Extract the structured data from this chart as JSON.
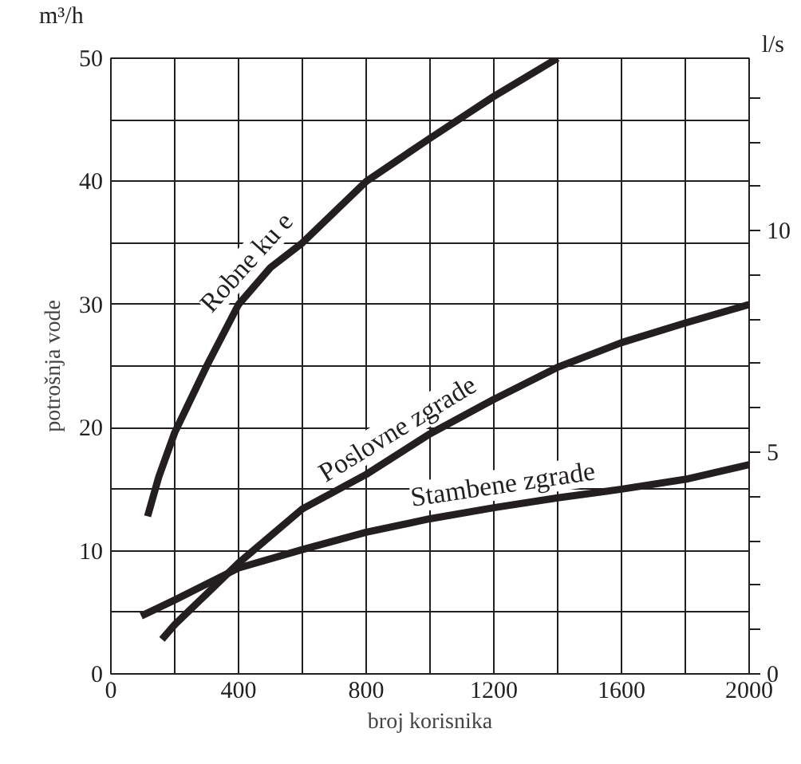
{
  "chart_data": {
    "type": "line",
    "xlabel": "broj korisnika",
    "ylabel": "potrošnja vode",
    "y2label": "l/s",
    "annotations": [
      "m³/h"
    ],
    "xlim": [
      0,
      2000
    ],
    "ylim": [
      0,
      50
    ],
    "y2lim": [
      0,
      13.89
    ],
    "xticks": [
      0,
      {
        "value": 200,
        "label": null
      },
      400,
      {
        "value": 600,
        "label": null
      },
      800,
      {
        "value": 1000,
        "label": null
      },
      1200,
      {
        "value": 1400,
        "label": null
      },
      1600,
      {
        "value": 1800,
        "label": null
      },
      2000
    ],
    "yticks": [
      0,
      {
        "value": 5,
        "label": null
      },
      10,
      {
        "value": 15,
        "label": null
      },
      20,
      {
        "value": 25,
        "label": null
      },
      30,
      {
        "value": 35,
        "label": null
      },
      40,
      {
        "value": 45,
        "label": null
      },
      50
    ],
    "y2ticks": [
      0,
      {
        "value": 1,
        "label": null
      },
      {
        "value": 2,
        "label": null
      },
      {
        "value": 3,
        "label": null
      },
      {
        "value": 4,
        "label": null
      },
      5,
      {
        "value": 6,
        "label": null
      },
      {
        "value": 7,
        "label": null
      },
      {
        "value": 8,
        "label": null
      },
      {
        "value": 9,
        "label": null
      },
      10,
      {
        "value": 11,
        "label": null
      },
      {
        "value": 12,
        "label": null
      },
      {
        "value": 13,
        "label": null
      }
    ],
    "grid": true,
    "marker": "none",
    "line_style": "solid",
    "series": [
      {
        "name": "Robne ku e",
        "color": "#231f20",
        "x": [
          115,
          150,
          200,
          300,
          400,
          500,
          600,
          800,
          1000,
          1200,
          1400
        ],
        "values": [
          12.8,
          16,
          19.6,
          25,
          30,
          33,
          35,
          40,
          43.5,
          46.9,
          50
        ]
      },
      {
        "name": "Poslovne zgrade",
        "color": "#231f20",
        "x": [
          160,
          200,
          300,
          400,
          600,
          800,
          1000,
          1200,
          1400,
          1600,
          1800,
          2000
        ],
        "values": [
          2.8,
          4,
          6.5,
          9,
          13.4,
          16.2,
          19.5,
          22.3,
          24.9,
          26.9,
          28.5,
          30
        ]
      },
      {
        "name": "Stambene zgrade",
        "color": "#231f20",
        "x": [
          95,
          200,
          400,
          600,
          800,
          1000,
          1200,
          1400,
          1600,
          1800,
          2000
        ],
        "values": [
          4.7,
          6,
          8.6,
          10.1,
          11.5,
          12.6,
          13.5,
          14.3,
          15,
          15.8,
          17
        ]
      }
    ]
  }
}
